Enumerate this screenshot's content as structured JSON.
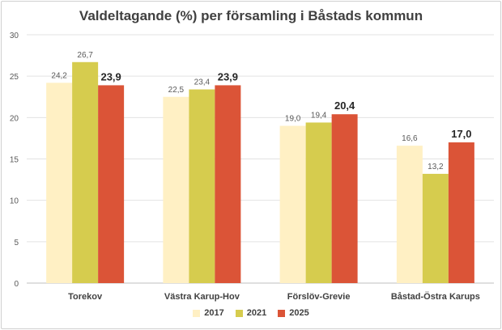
{
  "chart_data": {
    "type": "bar",
    "title": "Valdeltagande (%) per församling i Båstads kommun",
    "categories": [
      "Torekov",
      "Västra Karup-Hov",
      "Förslöv-Grevie",
      "Båstad-Östra Karups"
    ],
    "series": [
      {
        "name": "2017",
        "values": [
          24.2,
          22.5,
          19.0,
          16.6
        ],
        "labels": [
          "24,2",
          "22,5",
          "19,0",
          "16,6"
        ],
        "color": "#FFF0C4",
        "label_bold": false
      },
      {
        "name": "2021",
        "values": [
          26.7,
          23.4,
          19.4,
          13.2
        ],
        "labels": [
          "26,7",
          "23,4",
          "19,4",
          "13,2"
        ],
        "color": "#D6CC4E",
        "label_bold": false
      },
      {
        "name": "2025",
        "values": [
          23.9,
          23.9,
          20.4,
          17.0
        ],
        "labels": [
          "23,9",
          "23,9",
          "20,4",
          "17,0"
        ],
        "color": "#DB5437",
        "label_bold": true
      }
    ],
    "ylim": [
      0,
      30
    ],
    "yticks": [
      0,
      5,
      10,
      15,
      20,
      25,
      30
    ],
    "grid": true,
    "legend": "bottom"
  }
}
